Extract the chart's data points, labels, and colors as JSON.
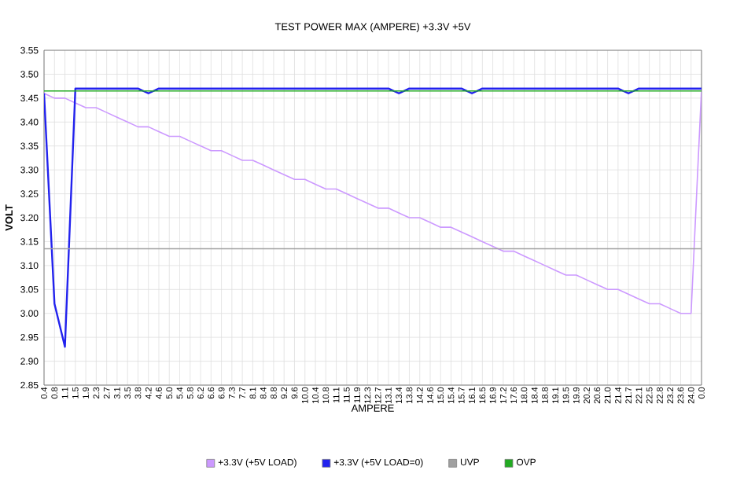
{
  "chart_data": {
    "type": "line",
    "title": "TEST POWER MAX (AMPERE) +3.3V +5V",
    "xlabel": "AMPERE",
    "ylabel": "VOLT",
    "categories": [
      "0.4",
      "0.8",
      "1.1",
      "1.5",
      "1.9",
      "2.3",
      "2.7",
      "3.1",
      "3.5",
      "3.8",
      "4.2",
      "4.6",
      "5.0",
      "5.4",
      "5.8",
      "6.2",
      "6.6",
      "6.9",
      "7.3",
      "7.7",
      "8.1",
      "8.4",
      "8.8",
      "9.2",
      "9.6",
      "10.0",
      "10.4",
      "10.8",
      "11.1",
      "11.5",
      "11.9",
      "12.3",
      "12.7",
      "13.1",
      "13.4",
      "13.8",
      "14.2",
      "14.6",
      "15.0",
      "15.4",
      "15.7",
      "16.1",
      "16.5",
      "16.9",
      "17.2",
      "17.6",
      "18.0",
      "18.4",
      "18.8",
      "19.1",
      "19.5",
      "19.9",
      "20.2",
      "20.6",
      "21.0",
      "21.4",
      "21.7",
      "22.1",
      "22.5",
      "22.8",
      "23.2",
      "23.6",
      "24.0",
      "0.0"
    ],
    "series": [
      {
        "name": "+3.3V (+5V LOAD)",
        "color": "#cc99ff",
        "values": [
          3.46,
          3.45,
          3.45,
          3.44,
          3.43,
          3.43,
          3.42,
          3.41,
          3.4,
          3.39,
          3.39,
          3.38,
          3.37,
          3.37,
          3.36,
          3.35,
          3.34,
          3.34,
          3.33,
          3.32,
          3.32,
          3.31,
          3.3,
          3.29,
          3.28,
          3.28,
          3.27,
          3.26,
          3.26,
          3.25,
          3.24,
          3.23,
          3.22,
          3.22,
          3.21,
          3.2,
          3.2,
          3.19,
          3.18,
          3.18,
          3.17,
          3.16,
          3.15,
          3.14,
          3.13,
          3.13,
          3.12,
          3.11,
          3.1,
          3.09,
          3.08,
          3.08,
          3.07,
          3.06,
          3.05,
          3.05,
          3.04,
          3.03,
          3.02,
          3.02,
          3.01,
          3.0,
          3.0,
          3.47
        ]
      },
      {
        "name": "+3.3V (+5V LOAD=0)",
        "color": "#2222ee",
        "values": [
          3.46,
          3.02,
          2.93,
          3.47,
          3.47,
          3.47,
          3.47,
          3.47,
          3.47,
          3.47,
          3.46,
          3.47,
          3.47,
          3.47,
          3.47,
          3.47,
          3.47,
          3.47,
          3.47,
          3.47,
          3.47,
          3.47,
          3.47,
          3.47,
          3.47,
          3.47,
          3.47,
          3.47,
          3.47,
          3.47,
          3.47,
          3.47,
          3.47,
          3.47,
          3.46,
          3.47,
          3.47,
          3.47,
          3.47,
          3.47,
          3.47,
          3.46,
          3.47,
          3.47,
          3.47,
          3.47,
          3.47,
          3.47,
          3.47,
          3.47,
          3.47,
          3.47,
          3.47,
          3.47,
          3.47,
          3.47,
          3.46,
          3.47,
          3.47,
          3.47,
          3.47,
          3.47,
          3.47,
          3.47
        ]
      },
      {
        "name": "UVP",
        "color": "#a0a0a0",
        "values": [
          3.135,
          3.135,
          3.135,
          3.135,
          3.135,
          3.135,
          3.135,
          3.135,
          3.135,
          3.135,
          3.135,
          3.135,
          3.135,
          3.135,
          3.135,
          3.135,
          3.135,
          3.135,
          3.135,
          3.135,
          3.135,
          3.135,
          3.135,
          3.135,
          3.135,
          3.135,
          3.135,
          3.135,
          3.135,
          3.135,
          3.135,
          3.135,
          3.135,
          3.135,
          3.135,
          3.135,
          3.135,
          3.135,
          3.135,
          3.135,
          3.135,
          3.135,
          3.135,
          3.135,
          3.135,
          3.135,
          3.135,
          3.135,
          3.135,
          3.135,
          3.135,
          3.135,
          3.135,
          3.135,
          3.135,
          3.135,
          3.135,
          3.135,
          3.135,
          3.135,
          3.135,
          3.135,
          3.135,
          3.135
        ]
      },
      {
        "name": "OVP",
        "color": "#22aa22",
        "values": [
          3.465,
          3.465,
          3.465,
          3.465,
          3.465,
          3.465,
          3.465,
          3.465,
          3.465,
          3.465,
          3.465,
          3.465,
          3.465,
          3.465,
          3.465,
          3.465,
          3.465,
          3.465,
          3.465,
          3.465,
          3.465,
          3.465,
          3.465,
          3.465,
          3.465,
          3.465,
          3.465,
          3.465,
          3.465,
          3.465,
          3.465,
          3.465,
          3.465,
          3.465,
          3.465,
          3.465,
          3.465,
          3.465,
          3.465,
          3.465,
          3.465,
          3.465,
          3.465,
          3.465,
          3.465,
          3.465,
          3.465,
          3.465,
          3.465,
          3.465,
          3.465,
          3.465,
          3.465,
          3.465,
          3.465,
          3.465,
          3.465,
          3.465,
          3.465,
          3.465,
          3.465,
          3.465,
          3.465,
          3.465
        ]
      }
    ],
    "ylim": [
      2.85,
      3.55
    ],
    "yticks": [
      2.85,
      {
        "value": 2.9,
        "label": "2.90"
      },
      2.95,
      {
        "value": 3.0,
        "label": "3.00"
      },
      3.05,
      {
        "value": 3.1,
        "label": "3.10"
      },
      3.15,
      {
        "value": 3.2,
        "label": "3.20"
      },
      3.25,
      {
        "value": 3.3,
        "label": "3.30"
      },
      3.35,
      {
        "value": 3.4,
        "label": "3.40"
      },
      3.45,
      {
        "value": 3.5,
        "label": "3.50"
      },
      3.55
    ],
    "grid": true,
    "legend": "bottom",
    "marker": "none"
  }
}
